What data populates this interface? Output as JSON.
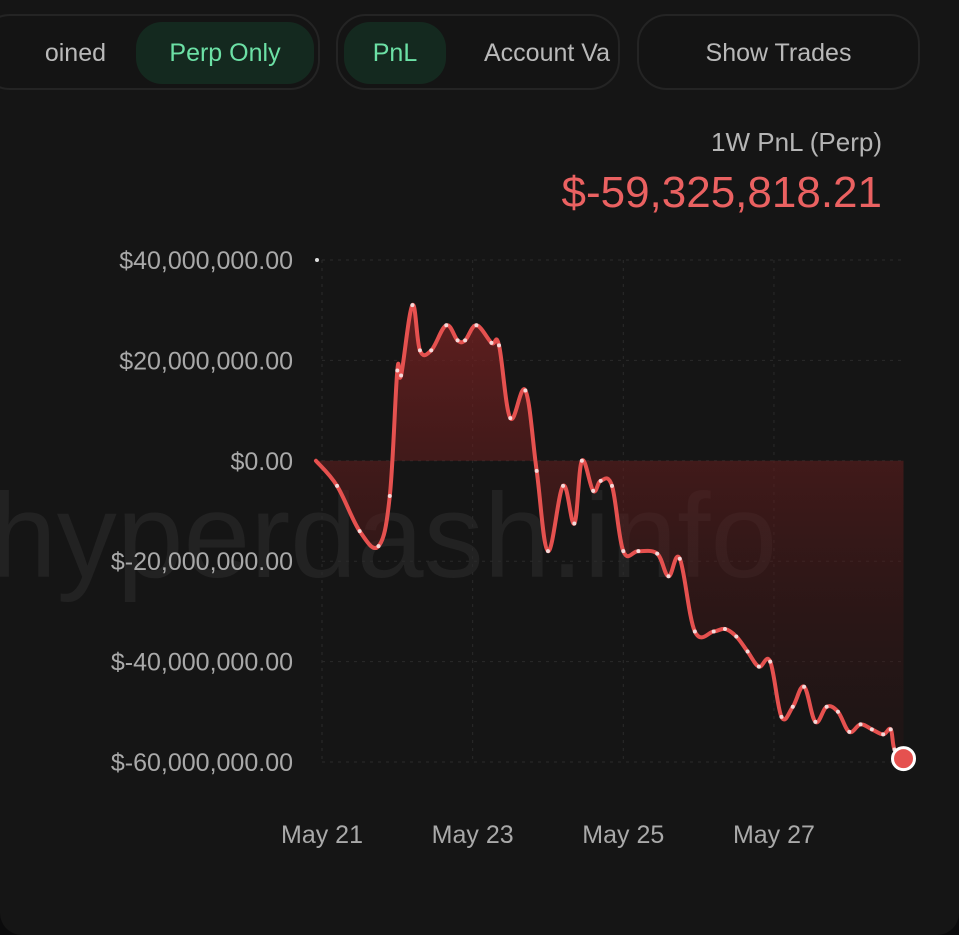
{
  "toggles": {
    "view_group": [
      {
        "label": "Combined",
        "visible_text": "oined",
        "active": false
      },
      {
        "label": "Perp Only",
        "active": true
      }
    ],
    "metric_group": [
      {
        "label": "PnL",
        "active": true
      },
      {
        "label": "Account Value",
        "visible_text": "Account Va",
        "active": false
      }
    ],
    "show_trades_label": "Show Trades"
  },
  "summary": {
    "label": "1W PnL (Perp)",
    "value": "$-59,325,818.21"
  },
  "watermark": "hyperdash.info",
  "colors": {
    "line": "#e5514f",
    "fill_top": "#7a2222",
    "accent_green": "#6ce0a5",
    "background": "#151515"
  },
  "chart_data": {
    "type": "area",
    "title": "",
    "xlabel": "",
    "ylabel": "",
    "x_unit": "days from May 21",
    "x_tick_labels": [
      {
        "value": 0,
        "label": "May 21"
      },
      {
        "value": 2,
        "label": "May 23"
      },
      {
        "value": 4,
        "label": "May 25"
      },
      {
        "value": 6,
        "label": "May 27"
      }
    ],
    "y_tick_labels": [
      {
        "value": 40000000,
        "label": "$40,000,000.00"
      },
      {
        "value": 20000000,
        "label": "$20,000,000.00"
      },
      {
        "value": 0,
        "label": "$0.00"
      },
      {
        "value": -20000000,
        "label": "$-20,000,000.00"
      },
      {
        "value": -40000000,
        "label": "$-40,000,000.00"
      },
      {
        "value": -60000000,
        "label": "$-60,000,000.00"
      }
    ],
    "xlim": [
      0,
      7.7
    ],
    "ylim": [
      -60000000,
      40000000
    ],
    "grid": true,
    "legend": "none",
    "series": [
      {
        "values": [
          [
            -0.08,
            0
          ],
          [
            0.2,
            -5000000
          ],
          [
            0.5,
            -14000000
          ],
          [
            0.75,
            -17000000
          ],
          [
            0.9,
            -7000000
          ],
          [
            1.0,
            18000000
          ],
          [
            1.05,
            17000000
          ],
          [
            1.2,
            31000000
          ],
          [
            1.3,
            22000000
          ],
          [
            1.45,
            22000000
          ],
          [
            1.65,
            27000000
          ],
          [
            1.8,
            24000000
          ],
          [
            1.9,
            24000000
          ],
          [
            2.05,
            27000000
          ],
          [
            2.25,
            23500000
          ],
          [
            2.35,
            23000000
          ],
          [
            2.5,
            8500000
          ],
          [
            2.7,
            14000000
          ],
          [
            2.85,
            -2000000
          ],
          [
            3.0,
            -18000000
          ],
          [
            3.2,
            -5000000
          ],
          [
            3.35,
            -12500000
          ],
          [
            3.45,
            0
          ],
          [
            3.6,
            -6000000
          ],
          [
            3.7,
            -4000000
          ],
          [
            3.85,
            -5000000
          ],
          [
            4.0,
            -18000000
          ],
          [
            4.2,
            -18000000
          ],
          [
            4.45,
            -18500000
          ],
          [
            4.6,
            -23000000
          ],
          [
            4.75,
            -19500000
          ],
          [
            4.95,
            -34000000
          ],
          [
            5.2,
            -34000000
          ],
          [
            5.35,
            -33500000
          ],
          [
            5.5,
            -35000000
          ],
          [
            5.65,
            -38000000
          ],
          [
            5.8,
            -41000000
          ],
          [
            5.95,
            -40000000
          ],
          [
            6.1,
            -51000000
          ],
          [
            6.25,
            -49000000
          ],
          [
            6.4,
            -45000000
          ],
          [
            6.55,
            -52000000
          ],
          [
            6.7,
            -49000000
          ],
          [
            6.85,
            -50000000
          ],
          [
            7.0,
            -54000000
          ],
          [
            7.15,
            -52500000
          ],
          [
            7.3,
            -53500000
          ],
          [
            7.45,
            -54500000
          ],
          [
            7.55,
            -53500000
          ],
          [
            7.6,
            -57500000
          ],
          [
            7.72,
            -59325818.21
          ]
        ]
      }
    ]
  }
}
